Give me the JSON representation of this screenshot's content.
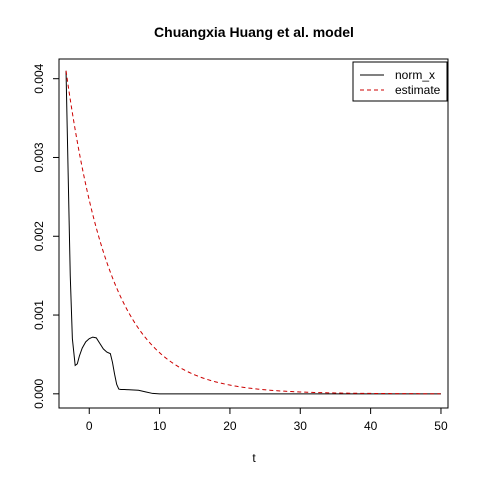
{
  "chart_data": {
    "type": "line",
    "title": "Chuangxia Huang et al. model",
    "xlabel": "t",
    "ylabel": "",
    "xlim": [
      -4.3,
      51.0
    ],
    "ylim": [
      -0.00018,
      0.00425
    ],
    "x_ticks": [
      0,
      10,
      20,
      30,
      40,
      50
    ],
    "x_tick_labels": [
      "0",
      "10",
      "20",
      "30",
      "40",
      "50"
    ],
    "y_ticks": [
      0.0,
      0.001,
      0.002,
      0.003,
      0.004
    ],
    "y_tick_labels": [
      "0.000",
      "0.001",
      "0.002",
      "0.003",
      "0.004"
    ],
    "grid": false,
    "legend_position": "top-right",
    "series": [
      {
        "name": "norm_x",
        "color": "#000000",
        "dash": "solid",
        "x": [
          -3.3,
          -3.0,
          -2.7,
          -2.4,
          -2.0,
          -1.7,
          -1.4,
          -1.0,
          -0.5,
          0.0,
          0.5,
          1.0,
          1.5,
          2.0,
          2.5,
          3.0,
          3.3,
          3.6,
          3.9,
          4.2,
          4.5,
          5.0,
          6.0,
          7.0,
          8.0,
          9.0,
          10.0,
          15.0,
          20.0,
          30.0,
          40.0,
          50.0
        ],
        "y": [
          0.0041,
          0.0028,
          0.0015,
          0.0007,
          0.00036,
          0.00038,
          0.00048,
          0.00058,
          0.00066,
          0.0007,
          0.00072,
          0.00071,
          0.00064,
          0.00057,
          0.00053,
          0.00051,
          0.0004,
          0.00025,
          0.00012,
          6e-05,
          5.5e-05,
          5.5e-05,
          5e-05,
          4.5e-05,
          2.5e-05,
          5e-06,
          0.0,
          0.0,
          0.0,
          0.0,
          0.0,
          0.0
        ]
      },
      {
        "name": "estimate",
        "color": "#cc0000",
        "dash": "dashed",
        "formula": "0.0041*exp(-0.155*(t+3.3))",
        "x0": -3.3,
        "x1": 50.0,
        "a": 0.0041,
        "k": 0.155
      }
    ]
  }
}
